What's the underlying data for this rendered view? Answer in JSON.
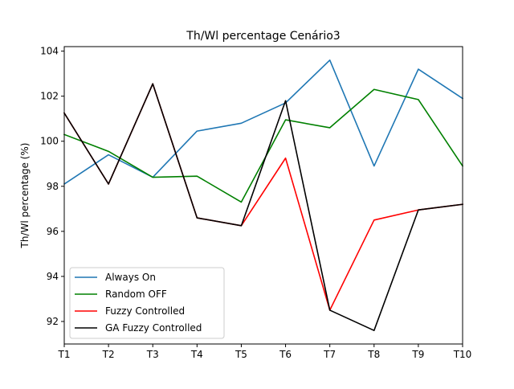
{
  "chart_data": {
    "type": "line",
    "title": "Th/Wl percentage Cenário3",
    "xlabel": "",
    "ylabel": "Th/Wl percentage (%)",
    "categories": [
      "T1",
      "T2",
      "T3",
      "T4",
      "T5",
      "T6",
      "T7",
      "T8",
      "T9",
      "T10"
    ],
    "ylim": [
      91.0,
      104.2
    ],
    "yticks": [
      92,
      94,
      96,
      98,
      100,
      102,
      104
    ],
    "grid": false,
    "legend_position": "lower-left",
    "series": [
      {
        "name": "Always On",
        "color": "#1f77b4",
        "values": [
          98.1,
          99.4,
          98.4,
          100.45,
          100.8,
          101.7,
          103.6,
          98.9,
          103.2,
          101.9
        ]
      },
      {
        "name": "Random OFF",
        "color": "#008000",
        "values": [
          100.3,
          99.55,
          98.4,
          98.45,
          97.3,
          100.95,
          100.6,
          102.3,
          101.85,
          98.9
        ]
      },
      {
        "name": "Fuzzy Controlled",
        "color": "#ff0000",
        "values": [
          101.25,
          98.1,
          102.55,
          96.6,
          96.25,
          99.25,
          92.5,
          96.5,
          96.95,
          97.2
        ]
      },
      {
        "name": "GA Fuzzy Controlled",
        "color": "#000000",
        "values": [
          101.25,
          98.1,
          102.55,
          96.6,
          96.25,
          101.8,
          92.5,
          91.6,
          96.95,
          97.2
        ]
      }
    ]
  }
}
